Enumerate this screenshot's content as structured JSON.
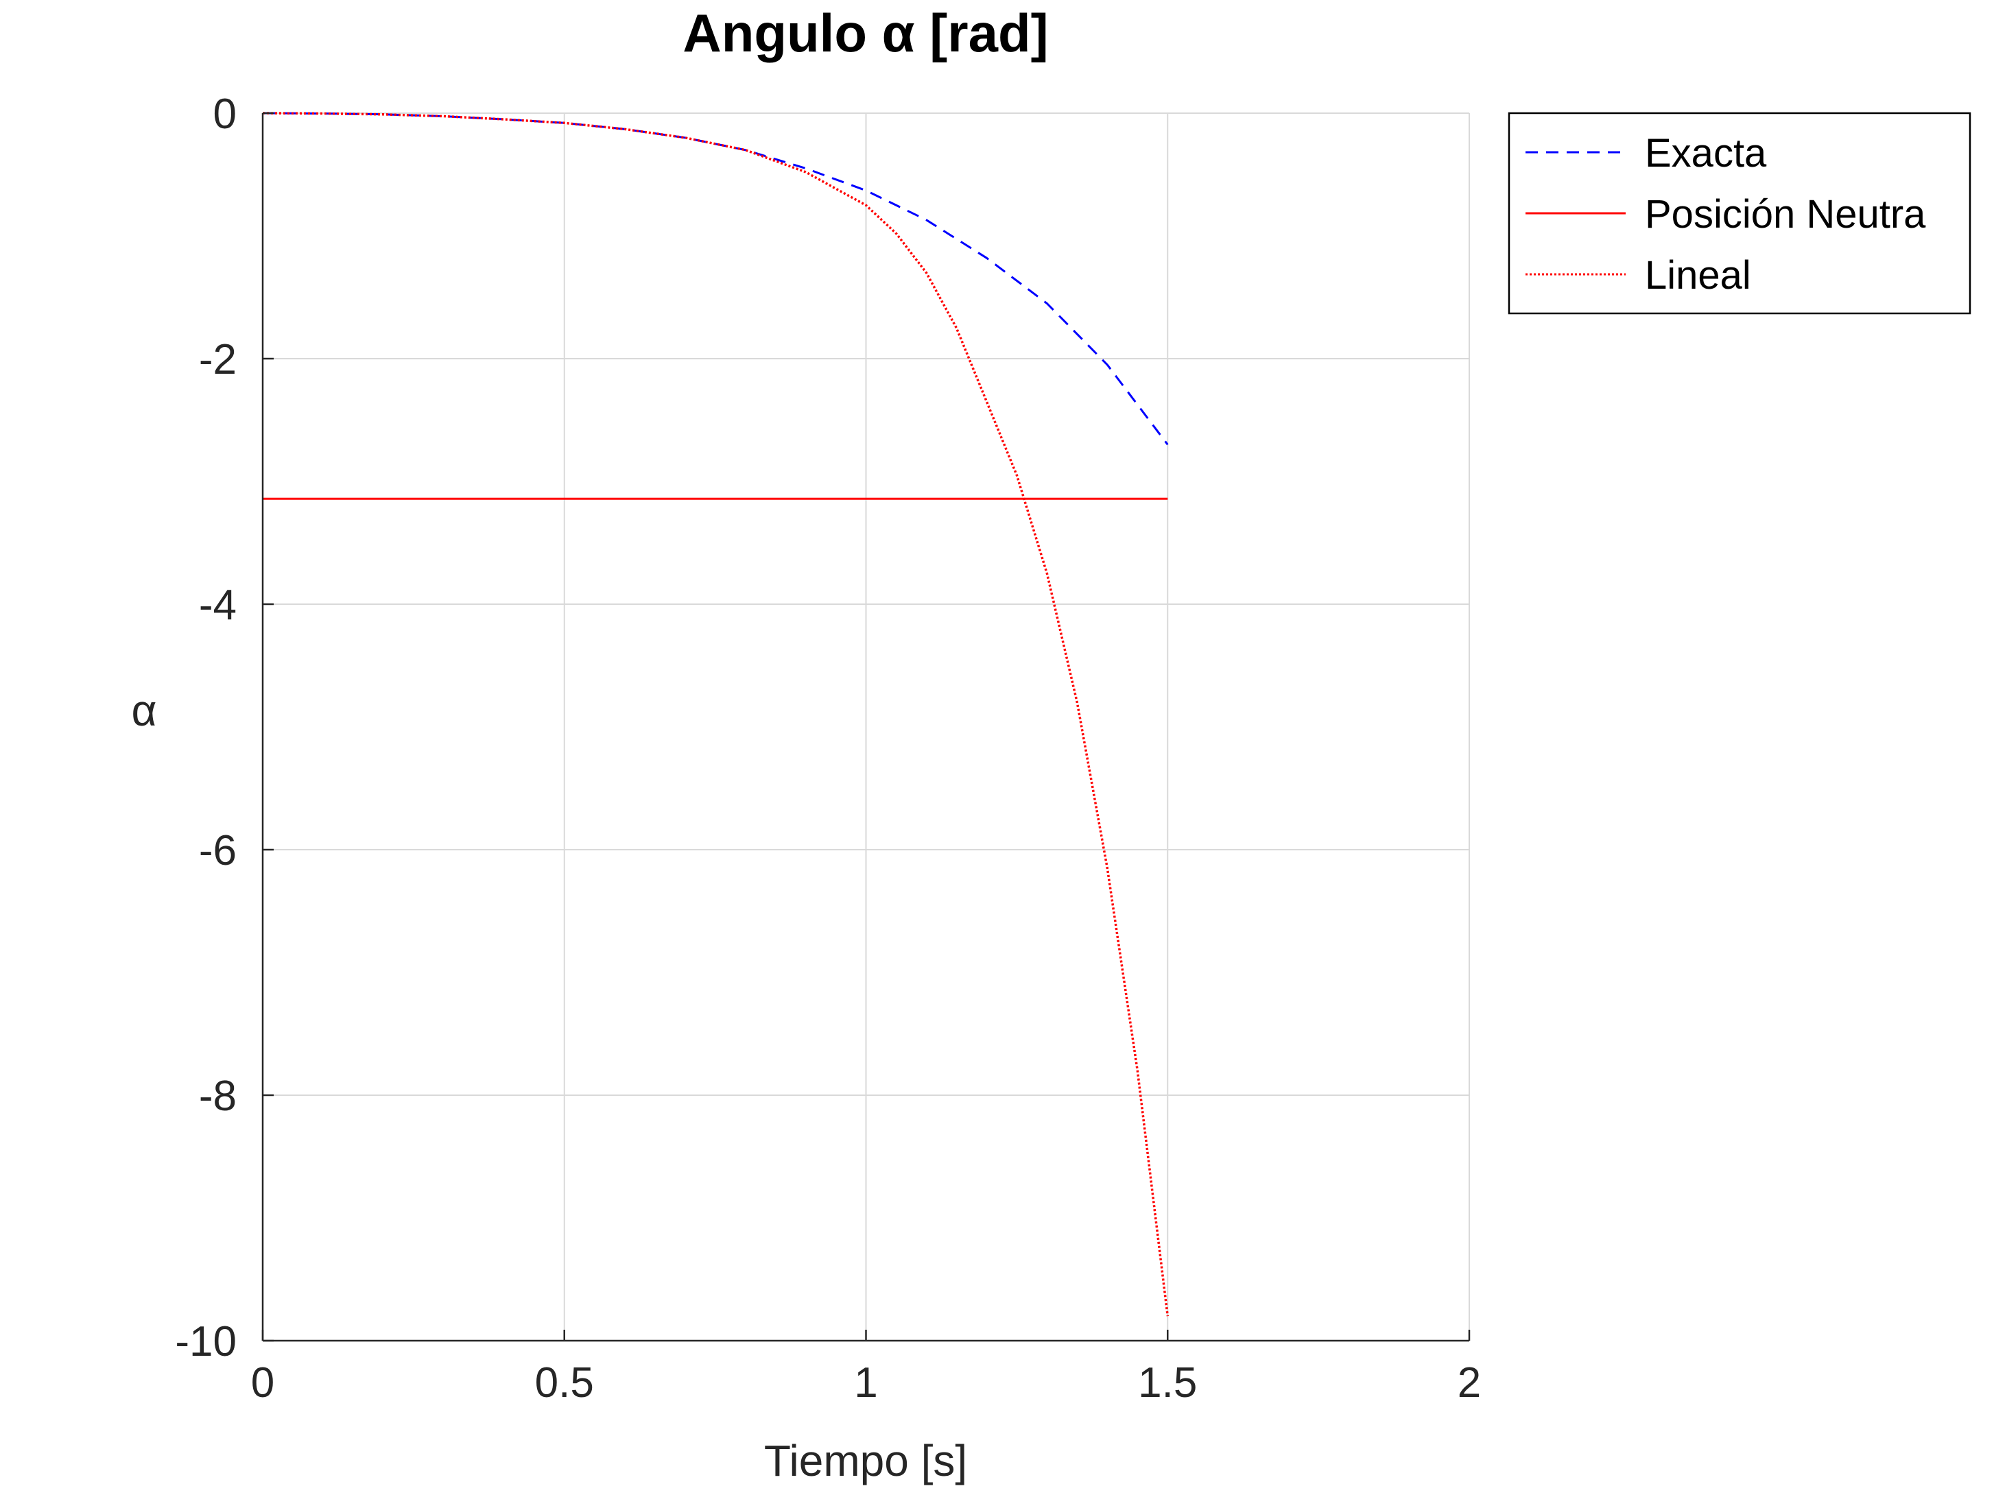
{
  "chart_data": {
    "type": "line",
    "title": "Angulo α [rad]",
    "xlabel": "Tiempo [s]",
    "ylabel": "α",
    "xlim": [
      0,
      2
    ],
    "ylim": [
      -10,
      0
    ],
    "xticks": [
      0,
      0.5,
      1,
      1.5,
      2
    ],
    "yticks": [
      0,
      -2,
      -4,
      -6,
      -8,
      -10
    ],
    "xtick_labels": [
      "0",
      "0.5",
      "1",
      "1.5",
      "2"
    ],
    "ytick_labels": [
      "0",
      "-2",
      "-4",
      "-6",
      "-8",
      "-10"
    ],
    "grid": true,
    "legend_position": "outside top-right",
    "series": [
      {
        "name": "Exacta",
        "color": "#0000ff",
        "style": "dashed",
        "x": [
          0,
          0.1,
          0.2,
          0.3,
          0.4,
          0.5,
          0.6,
          0.7,
          0.8,
          0.9,
          1.0,
          1.1,
          1.2,
          1.3,
          1.4,
          1.5
        ],
        "y": [
          0,
          -0.003,
          -0.01,
          -0.025,
          -0.05,
          -0.08,
          -0.13,
          -0.2,
          -0.3,
          -0.45,
          -0.63,
          -0.87,
          -1.18,
          -1.55,
          -2.05,
          -2.7
        ]
      },
      {
        "name": "Posición Neutra",
        "color": "#ff0000",
        "style": "solid",
        "x": [
          0,
          1.5
        ],
        "y": [
          -3.1416,
          -3.1416
        ]
      },
      {
        "name": "Lineal",
        "color": "#ff0000",
        "style": "dotted",
        "x": [
          0,
          0.1,
          0.2,
          0.3,
          0.4,
          0.5,
          0.6,
          0.7,
          0.8,
          0.9,
          1.0,
          1.05,
          1.1,
          1.15,
          1.2,
          1.25,
          1.3,
          1.35,
          1.4,
          1.45,
          1.5
        ],
        "y": [
          0,
          -0.003,
          -0.01,
          -0.025,
          -0.05,
          -0.08,
          -0.13,
          -0.2,
          -0.3,
          -0.48,
          -0.75,
          -0.98,
          -1.3,
          -1.75,
          -2.35,
          -2.95,
          -3.75,
          -4.8,
          -6.15,
          -7.8,
          -9.8
        ]
      }
    ]
  }
}
